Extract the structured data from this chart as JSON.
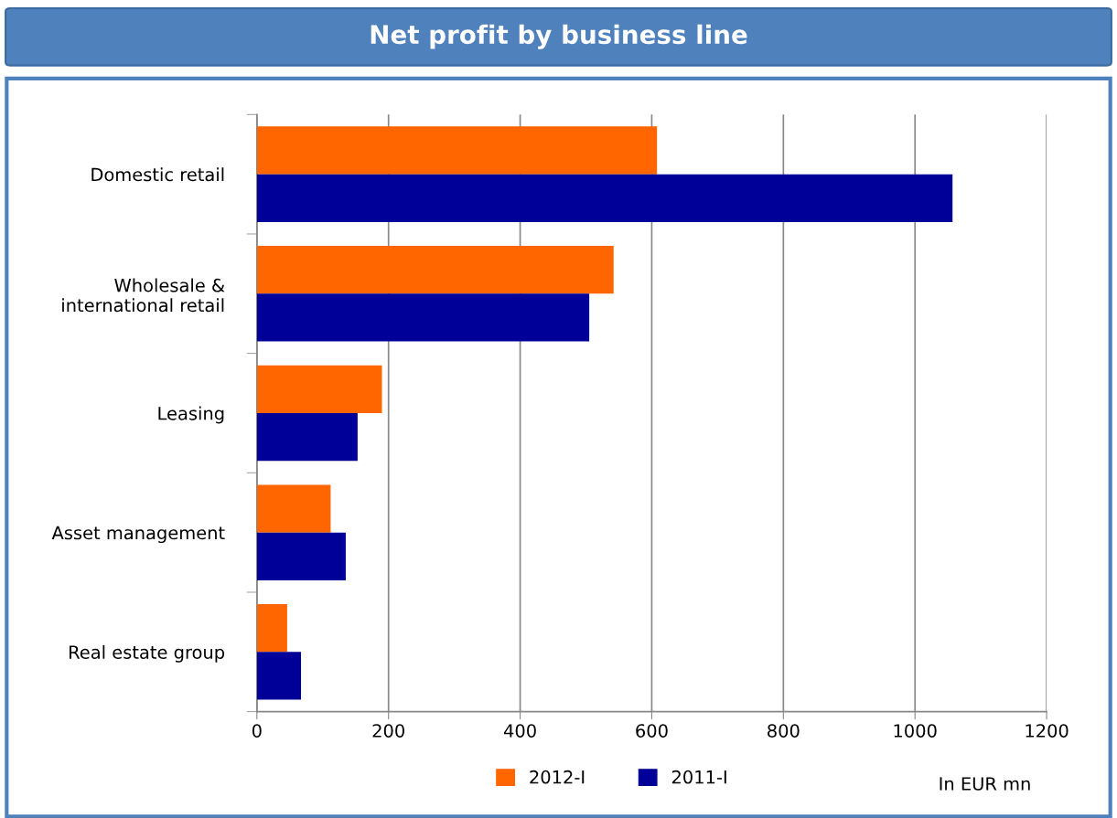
{
  "chart_data": {
    "type": "bar",
    "orientation": "horizontal",
    "title": "Net profit by business line",
    "categories": [
      "Domestic retail",
      "Wholesale &\ninternational retail",
      "Leasing",
      "Asset management",
      "Real estate group"
    ],
    "series": [
      {
        "name": "2012-I",
        "color": "#ff6600",
        "values": [
          608,
          542,
          190,
          112,
          46
        ]
      },
      {
        "name": "2011-I",
        "color": "#000099",
        "values": [
          1057,
          505,
          153,
          135,
          67
        ]
      }
    ],
    "xlim": [
      0,
      1200
    ],
    "xticks": [
      0,
      200,
      400,
      600,
      800,
      1000,
      1200
    ],
    "grid": "x",
    "legend": "bottom",
    "annotations": [
      "In EUR mn"
    ]
  }
}
